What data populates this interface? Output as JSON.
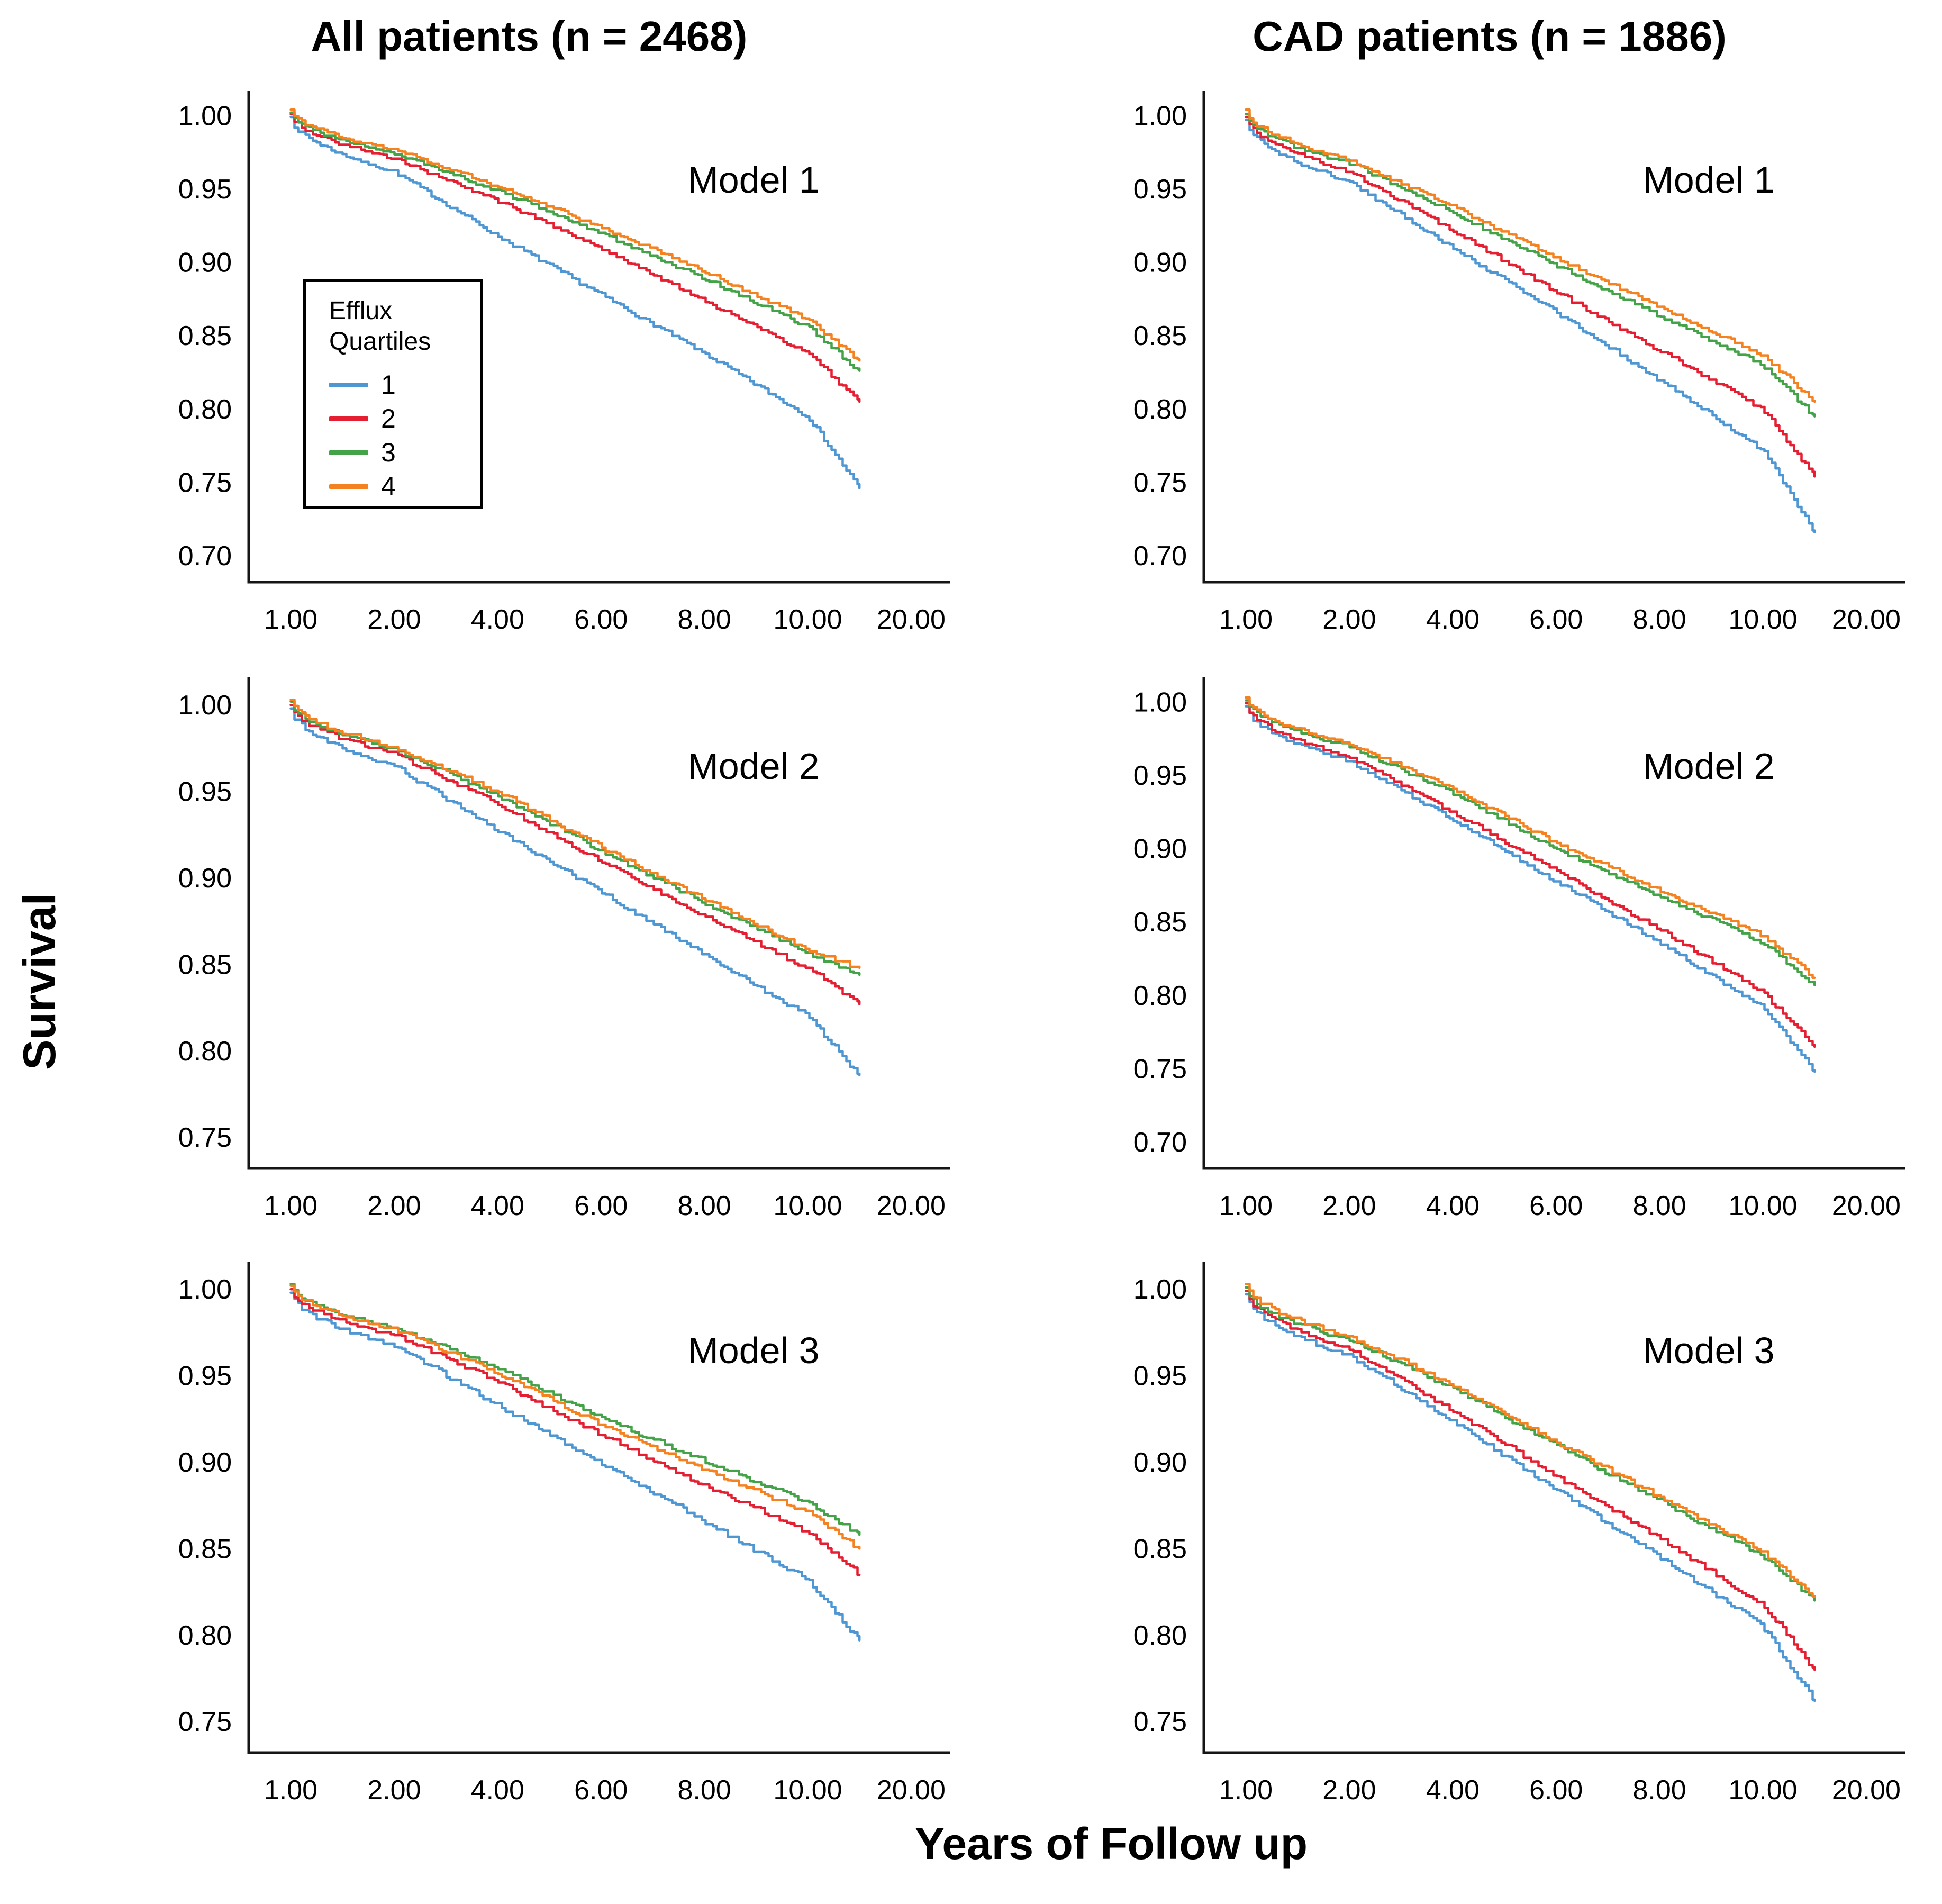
{
  "figure": {
    "column_titles": {
      "left": "All patients (n = 2468)",
      "right": "CAD patients (n = 1886)"
    },
    "y_axis_label": "Survival",
    "x_axis_label": "Years of Follow up",
    "legend": {
      "title_lines": [
        "Efflux",
        "Quartiles"
      ],
      "entries": [
        {
          "label": "1",
          "color": "#4E97D3"
        },
        {
          "label": "2",
          "color": "#E51F32"
        },
        {
          "label": "3",
          "color": "#44A348"
        },
        {
          "label": "4",
          "color": "#F58220"
        }
      ]
    },
    "colors": {
      "axis": "#151515",
      "text": "#000000",
      "background": "#ffffff"
    }
  },
  "chart_data": [
    {
      "type": "line",
      "title": "Model 1",
      "group": "All patients (n = 2468)",
      "x_years": [
        1,
        2,
        4,
        6,
        8,
        10,
        15
      ],
      "x_ticks": [
        1,
        2,
        4,
        6,
        8,
        10,
        20
      ],
      "x_tick_labels": [
        "1.00",
        "2.00",
        "4.00",
        "6.00",
        "8.00",
        "10.00",
        "20.00"
      ],
      "x_scale_note": "ticks evenly spaced (non-linear year scale); curves end midway between 10.00 and 20.00",
      "ylim": [
        0.7,
        1.0
      ],
      "y_ticks": [
        0.7,
        0.75,
        0.8,
        0.85,
        0.9,
        0.95,
        1.0
      ],
      "series": [
        {
          "name": "Quartile 1",
          "color": "#4E97D3",
          "values": [
            0.999,
            0.962,
            0.918,
            0.878,
            0.838,
            0.795,
            0.746
          ]
        },
        {
          "name": "Quartile 2",
          "color": "#E51F32",
          "values": [
            1.001,
            0.971,
            0.942,
            0.91,
            0.874,
            0.838,
            0.805
          ]
        },
        {
          "name": "Quartile 3",
          "color": "#44A348",
          "values": [
            1.002,
            0.975,
            0.949,
            0.92,
            0.889,
            0.856,
            0.826
          ]
        },
        {
          "name": "Quartile 4",
          "color": "#F58220",
          "values": [
            1.004,
            0.977,
            0.952,
            0.924,
            0.894,
            0.861,
            0.833
          ]
        }
      ]
    },
    {
      "type": "line",
      "title": "Model 1",
      "group": "CAD patients (n = 1886)",
      "x_years": [
        1,
        2,
        4,
        6,
        8,
        10,
        15
      ],
      "x_ticks": [
        1,
        2,
        4,
        6,
        8,
        10,
        20
      ],
      "x_tick_labels": [
        "1.00",
        "2.00",
        "4.00",
        "6.00",
        "8.00",
        "10.00",
        "20.00"
      ],
      "ylim": [
        0.7,
        1.0
      ],
      "y_ticks": [
        0.7,
        0.75,
        0.8,
        0.85,
        0.9,
        0.95,
        1.0
      ],
      "series": [
        {
          "name": "Quartile 1",
          "color": "#4E97D3",
          "values": [
            0.997,
            0.955,
            0.91,
            0.866,
            0.82,
            0.772,
            0.716
          ]
        },
        {
          "name": "Quartile 2",
          "color": "#E51F32",
          "values": [
            0.999,
            0.962,
            0.922,
            0.88,
            0.84,
            0.8,
            0.754
          ]
        },
        {
          "name": "Quartile 3",
          "color": "#44A348",
          "values": [
            1.001,
            0.968,
            0.934,
            0.898,
            0.864,
            0.83,
            0.795
          ]
        },
        {
          "name": "Quartile 4",
          "color": "#F58220",
          "values": [
            1.004,
            0.97,
            0.938,
            0.903,
            0.87,
            0.837,
            0.805
          ]
        }
      ]
    },
    {
      "type": "line",
      "title": "Model 2",
      "group": "All patients (n = 2468)",
      "x_years": [
        1,
        2,
        4,
        6,
        8,
        10,
        15
      ],
      "x_ticks": [
        1,
        2,
        4,
        6,
        8,
        10,
        20
      ],
      "x_tick_labels": [
        "1.00",
        "2.00",
        "4.00",
        "6.00",
        "8.00",
        "10.00",
        "20.00"
      ],
      "ylim": [
        0.75,
        1.0
      ],
      "y_ticks": [
        0.75,
        0.8,
        0.85,
        0.9,
        0.95,
        1.0
      ],
      "series": [
        {
          "name": "Quartile 1",
          "color": "#4E97D3",
          "values": [
            0.998,
            0.965,
            0.927,
            0.892,
            0.856,
            0.82,
            0.786
          ]
        },
        {
          "name": "Quartile 2",
          "color": "#E51F32",
          "values": [
            1.0,
            0.972,
            0.943,
            0.91,
            0.878,
            0.848,
            0.827
          ]
        },
        {
          "name": "Quartile 3",
          "color": "#44A348",
          "values": [
            1.002,
            0.975,
            0.948,
            0.916,
            0.886,
            0.857,
            0.844
          ]
        },
        {
          "name": "Quartile 4",
          "color": "#F58220",
          "values": [
            1.003,
            0.976,
            0.95,
            0.918,
            0.888,
            0.859,
            0.848
          ]
        }
      ]
    },
    {
      "type": "line",
      "title": "Model 2",
      "group": "CAD patients (n = 1886)",
      "x_years": [
        1,
        2,
        4,
        6,
        8,
        10,
        15
      ],
      "x_ticks": [
        1,
        2,
        4,
        6,
        8,
        10,
        20
      ],
      "x_tick_labels": [
        "1.00",
        "2.00",
        "4.00",
        "6.00",
        "8.00",
        "10.00",
        "20.00"
      ],
      "ylim": [
        0.7,
        1.0
      ],
      "y_ticks": [
        0.7,
        0.75,
        0.8,
        0.85,
        0.9,
        0.95,
        1.0
      ],
      "series": [
        {
          "name": "Quartile 1",
          "color": "#4E97D3",
          "values": [
            0.997,
            0.96,
            0.92,
            0.878,
            0.836,
            0.792,
            0.748
          ]
        },
        {
          "name": "Quartile 2",
          "color": "#E51F32",
          "values": [
            0.999,
            0.963,
            0.925,
            0.885,
            0.845,
            0.802,
            0.765
          ]
        },
        {
          "name": "Quartile 3",
          "color": "#44A348",
          "values": [
            1.001,
            0.97,
            0.938,
            0.9,
            0.868,
            0.836,
            0.807
          ]
        },
        {
          "name": "Quartile 4",
          "color": "#F58220",
          "values": [
            1.003,
            0.972,
            0.941,
            0.904,
            0.872,
            0.841,
            0.812
          ]
        }
      ]
    },
    {
      "type": "line",
      "title": "Model 3",
      "group": "All patients (n = 2468)",
      "x_years": [
        1,
        2,
        4,
        6,
        8,
        10,
        15
      ],
      "x_ticks": [
        1,
        2,
        4,
        6,
        8,
        10,
        20
      ],
      "x_tick_labels": [
        "1.00",
        "2.00",
        "4.00",
        "6.00",
        "8.00",
        "10.00",
        "20.00"
      ],
      "ylim": [
        0.75,
        1.0
      ],
      "y_ticks": [
        0.75,
        0.8,
        0.85,
        0.9,
        0.95,
        1.0
      ],
      "series": [
        {
          "name": "Quartile 1",
          "color": "#4E97D3",
          "values": [
            0.998,
            0.968,
            0.933,
            0.9,
            0.866,
            0.832,
            0.797
          ]
        },
        {
          "name": "Quartile 2",
          "color": "#E51F32",
          "values": [
            1.0,
            0.974,
            0.947,
            0.916,
            0.887,
            0.86,
            0.835
          ]
        },
        {
          "name": "Quartile 3",
          "color": "#44A348",
          "values": [
            1.003,
            0.978,
            0.955,
            0.926,
            0.901,
            0.877,
            0.858
          ]
        },
        {
          "name": "Quartile 4",
          "color": "#F58220",
          "values": [
            1.002,
            0.977,
            0.952,
            0.922,
            0.896,
            0.871,
            0.85
          ]
        }
      ]
    },
    {
      "type": "line",
      "title": "Model 3",
      "group": "CAD patients (n = 1886)",
      "x_years": [
        1,
        2,
        4,
        6,
        8,
        10,
        15
      ],
      "x_ticks": [
        1,
        2,
        4,
        6,
        8,
        10,
        20
      ],
      "x_tick_labels": [
        "1.00",
        "2.00",
        "4.00",
        "6.00",
        "8.00",
        "10.00",
        "20.00"
      ],
      "ylim": [
        0.75,
        1.0
      ],
      "y_ticks": [
        0.75,
        0.8,
        0.85,
        0.9,
        0.95,
        1.0
      ],
      "series": [
        {
          "name": "Quartile 1",
          "color": "#4E97D3",
          "values": [
            0.997,
            0.962,
            0.924,
            0.884,
            0.845,
            0.805,
            0.762
          ]
        },
        {
          "name": "Quartile 2",
          "color": "#E51F32",
          "values": [
            0.999,
            0.966,
            0.93,
            0.892,
            0.856,
            0.818,
            0.78
          ]
        },
        {
          "name": "Quartile 3",
          "color": "#44A348",
          "values": [
            1.001,
            0.971,
            0.943,
            0.91,
            0.878,
            0.846,
            0.82
          ]
        },
        {
          "name": "Quartile 4",
          "color": "#F58220",
          "values": [
            1.003,
            0.973,
            0.945,
            0.912,
            0.88,
            0.848,
            0.822
          ]
        }
      ]
    }
  ]
}
